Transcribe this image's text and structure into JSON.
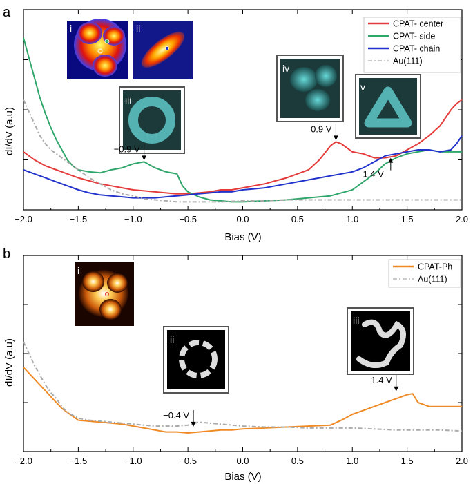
{
  "chart_data": [
    {
      "panel": "a",
      "type": "line",
      "xlabel": "Bias (V)",
      "ylabel": "dI/dV (a.u)",
      "xlim": [
        -2.0,
        2.0
      ],
      "ylim": [
        0,
        10
      ],
      "xticks": [
        "-2.0",
        "-1.5",
        "-1.0",
        "-0.5",
        "0.0",
        "0.5",
        "1.0",
        "1.5",
        "2.0"
      ],
      "legend_position": "top-right",
      "series": [
        {
          "name": "CPAT- center",
          "color": "#e53b3b",
          "dash": "none",
          "x": [
            -2.0,
            -1.9,
            -1.8,
            -1.7,
            -1.6,
            -1.5,
            -1.4,
            -1.3,
            -1.2,
            -1.1,
            -1.0,
            -0.9,
            -0.8,
            -0.7,
            -0.6,
            -0.5,
            -0.4,
            -0.3,
            -0.2,
            -0.1,
            0.0,
            0.1,
            0.2,
            0.3,
            0.4,
            0.5,
            0.6,
            0.7,
            0.8,
            0.85,
            0.9,
            1.0,
            1.1,
            1.2,
            1.3,
            1.4,
            1.5,
            1.6,
            1.7,
            1.8,
            1.9,
            1.95,
            2.0
          ],
          "y": [
            2.9,
            2.5,
            2.2,
            2.0,
            1.8,
            1.6,
            1.45,
            1.3,
            1.2,
            1.1,
            1.0,
            0.95,
            0.9,
            0.85,
            0.8,
            0.8,
            0.85,
            0.9,
            1.0,
            1.0,
            1.1,
            1.2,
            1.3,
            1.45,
            1.6,
            1.8,
            2.0,
            2.5,
            3.2,
            3.4,
            3.3,
            2.9,
            2.8,
            2.6,
            2.6,
            2.7,
            3.0,
            3.3,
            3.7,
            4.2,
            5.0,
            5.3,
            5.5
          ]
        },
        {
          "name": "CPAT- side",
          "color": "#2fa66a",
          "dash": "none",
          "x": [
            -2.0,
            -1.95,
            -1.9,
            -1.85,
            -1.8,
            -1.75,
            -1.7,
            -1.65,
            -1.6,
            -1.55,
            -1.5,
            -1.4,
            -1.3,
            -1.2,
            -1.1,
            -1.0,
            -0.9,
            -0.8,
            -0.7,
            -0.6,
            -0.55,
            -0.5,
            -0.4,
            -0.3,
            -0.2,
            -0.1,
            0.0,
            0.2,
            0.4,
            0.6,
            0.8,
            1.0,
            1.1,
            1.2,
            1.3,
            1.4,
            1.5,
            1.6,
            1.7,
            1.8,
            1.9,
            2.0
          ],
          "y": [
            8.6,
            7.6,
            6.6,
            5.6,
            4.8,
            4.1,
            3.5,
            3.0,
            2.5,
            2.2,
            2.0,
            1.9,
            1.85,
            2.0,
            2.1,
            2.3,
            2.4,
            2.1,
            1.9,
            1.8,
            1.2,
            0.9,
            0.65,
            0.5,
            0.45,
            0.4,
            0.4,
            0.45,
            0.5,
            0.6,
            0.7,
            1.0,
            1.4,
            1.8,
            2.3,
            2.6,
            2.8,
            2.9,
            3.0,
            2.9,
            2.9,
            2.9
          ]
        },
        {
          "name": "CPAT- chain",
          "color": "#2233cc",
          "dash": "none",
          "x": [
            -2.0,
            -1.9,
            -1.8,
            -1.7,
            -1.6,
            -1.5,
            -1.4,
            -1.3,
            -1.2,
            -1.1,
            -1.0,
            -0.9,
            -0.8,
            -0.7,
            -0.6,
            -0.5,
            -0.4,
            -0.3,
            -0.2,
            -0.1,
            0.0,
            0.1,
            0.2,
            0.3,
            0.4,
            0.5,
            0.6,
            0.7,
            0.8,
            0.9,
            1.0,
            1.1,
            1.2,
            1.3,
            1.4,
            1.5,
            1.6,
            1.7,
            1.8,
            1.9,
            1.95,
            2.0
          ],
          "y": [
            2.0,
            1.8,
            1.6,
            1.4,
            1.2,
            1.0,
            0.85,
            0.75,
            0.7,
            0.65,
            0.6,
            0.6,
            0.6,
            0.65,
            0.7,
            0.75,
            0.8,
            0.85,
            0.9,
            0.9,
            1.0,
            1.05,
            1.1,
            1.2,
            1.3,
            1.4,
            1.5,
            1.6,
            1.7,
            1.8,
            1.9,
            2.1,
            2.4,
            2.7,
            2.8,
            2.9,
            3.0,
            3.0,
            2.9,
            3.0,
            3.3,
            3.7
          ]
        },
        {
          "name": "Au(111)",
          "color": "#aaaaaa",
          "dash": "6,3,2,3",
          "x": [
            -2.0,
            -1.95,
            -1.9,
            -1.85,
            -1.8,
            -1.75,
            -1.7,
            -1.6,
            -1.5,
            -1.4,
            -1.3,
            -1.2,
            -1.1,
            -1.0,
            -0.9,
            -0.8,
            -0.7,
            -0.6,
            -0.5,
            -0.4,
            -0.2,
            0.0,
            0.2,
            0.4,
            0.6,
            0.8,
            1.0,
            1.2,
            1.4,
            1.6,
            1.8,
            2.0
          ],
          "y": [
            5.5,
            4.9,
            4.3,
            3.7,
            3.3,
            3.0,
            2.8,
            2.4,
            2.0,
            1.6,
            1.3,
            1.0,
            0.8,
            0.7,
            0.55,
            0.5,
            0.45,
            0.4,
            0.4,
            0.4,
            0.4,
            0.45,
            0.45,
            0.5,
            0.5,
            0.5,
            0.5,
            0.5,
            0.5,
            0.5,
            0.5,
            0.5
          ]
        }
      ],
      "annotations": [
        {
          "text": "-0.9 V",
          "x": -0.9,
          "y": 2.4
        },
        {
          "text": "0.9 V",
          "x": 0.85,
          "y": 3.4
        },
        {
          "text": "1.4 V",
          "x": 1.35,
          "y": 2.6
        }
      ],
      "insets": [
        "i",
        "ii",
        "iii",
        "iv",
        "v"
      ]
    },
    {
      "panel": "b",
      "type": "line",
      "xlabel": "Bias (V)",
      "ylabel": "dI/dV (a.u)",
      "xlim": [
        -2.0,
        2.0
      ],
      "ylim": [
        0,
        10
      ],
      "xticks": [
        "-2.0",
        "-1.5",
        "-1.0",
        "-0.5",
        "0.0",
        "0.5",
        "1.0",
        "1.5",
        "2.0"
      ],
      "legend_position": "top-right",
      "series": [
        {
          "name": "CPAT-Ph",
          "color": "#f08a24",
          "dash": "none",
          "x": [
            -2.0,
            -1.95,
            -1.9,
            -1.85,
            -1.8,
            -1.75,
            -1.7,
            -1.65,
            -1.6,
            -1.55,
            -1.5,
            -1.4,
            -1.3,
            -1.2,
            -1.1,
            -1.0,
            -0.9,
            -0.8,
            -0.7,
            -0.6,
            -0.5,
            -0.4,
            -0.3,
            -0.2,
            -0.1,
            0.0,
            0.2,
            0.4,
            0.6,
            0.8,
            0.9,
            1.0,
            1.1,
            1.2,
            1.3,
            1.4,
            1.45,
            1.5,
            1.55,
            1.6,
            1.7,
            1.8,
            1.9,
            2.0
          ],
          "y": [
            4.3,
            4.0,
            3.7,
            3.4,
            3.1,
            2.8,
            2.5,
            2.2,
            2.0,
            1.8,
            1.6,
            1.55,
            1.5,
            1.45,
            1.4,
            1.3,
            1.2,
            1.1,
            1.0,
            1.0,
            0.95,
            1.0,
            1.05,
            1.1,
            1.1,
            1.15,
            1.2,
            1.25,
            1.3,
            1.35,
            1.6,
            1.9,
            2.1,
            2.3,
            2.5,
            2.7,
            2.8,
            2.9,
            2.95,
            2.5,
            2.3,
            2.3,
            2.3,
            2.3
          ]
        },
        {
          "name": "Au(111)",
          "color": "#aaaaaa",
          "dash": "6,3,2,3",
          "x": [
            -2.0,
            -1.95,
            -1.9,
            -1.85,
            -1.8,
            -1.75,
            -1.7,
            -1.65,
            -1.6,
            -1.5,
            -1.4,
            -1.3,
            -1.2,
            -1.1,
            -1.0,
            -0.9,
            -0.8,
            -0.7,
            -0.6,
            -0.5,
            -0.4,
            -0.3,
            -0.2,
            0.0,
            0.2,
            0.4,
            0.6,
            0.8,
            1.0,
            1.2,
            1.4,
            1.6,
            1.8,
            2.0
          ],
          "y": [
            5.6,
            5.0,
            4.4,
            3.9,
            3.4,
            3.0,
            2.7,
            2.3,
            2.0,
            1.7,
            1.6,
            1.55,
            1.5,
            1.45,
            1.4,
            1.35,
            1.3,
            1.3,
            1.3,
            1.35,
            1.5,
            1.45,
            1.4,
            1.3,
            1.25,
            1.25,
            1.2,
            1.2,
            1.2,
            1.15,
            1.1,
            1.1,
            1.1,
            1.05
          ]
        }
      ],
      "annotations": [
        {
          "text": "-0.4 V",
          "x": -0.45,
          "y": 1.2
        },
        {
          "text": "1.4 V",
          "x": 1.4,
          "y": 3.0
        }
      ],
      "insets": [
        "i",
        "ii",
        "iii"
      ]
    }
  ]
}
